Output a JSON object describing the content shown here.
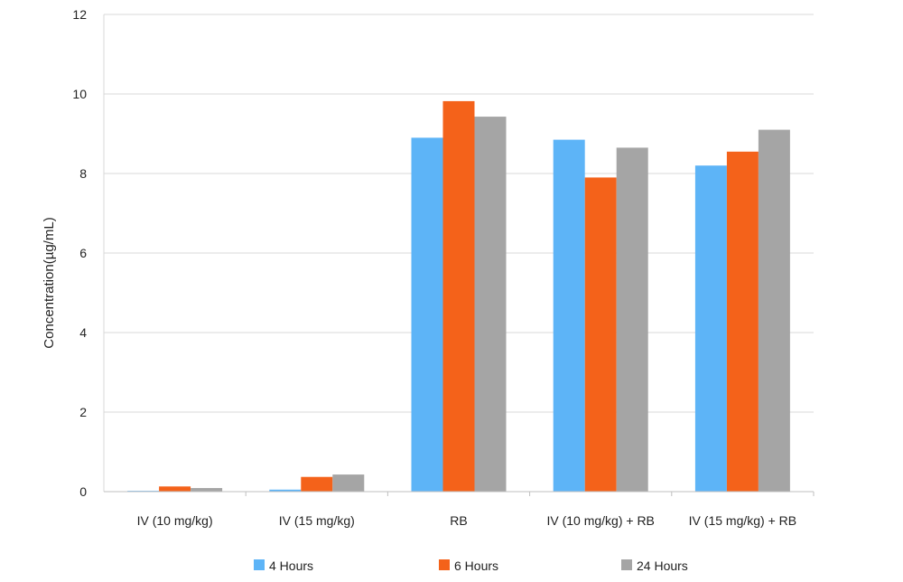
{
  "chart_data": {
    "type": "bar",
    "title": "",
    "xlabel": "",
    "ylabel": "Concentration(µg/mL)",
    "ylim": [
      0,
      12
    ],
    "yticks": [
      0,
      2,
      4,
      6,
      8,
      10,
      12
    ],
    "grid": true,
    "legend_position": "bottom",
    "categories": [
      "IV (10 mg/kg)",
      "IV (15 mg/kg)",
      "RB",
      "IV (10 mg/kg) + RB",
      "IV (15 mg/kg) + RB"
    ],
    "series": [
      {
        "name": "4 Hours",
        "color": "#5db4f7",
        "values": [
          0.02,
          0.05,
          8.9,
          8.85,
          8.2
        ]
      },
      {
        "name": "6 Hours",
        "color": "#f4621a",
        "values": [
          0.13,
          0.37,
          9.82,
          7.9,
          8.55
        ]
      },
      {
        "name": "24 Hours",
        "color": "#a5a5a5",
        "values": [
          0.09,
          0.43,
          9.43,
          8.65,
          9.1
        ]
      }
    ]
  }
}
